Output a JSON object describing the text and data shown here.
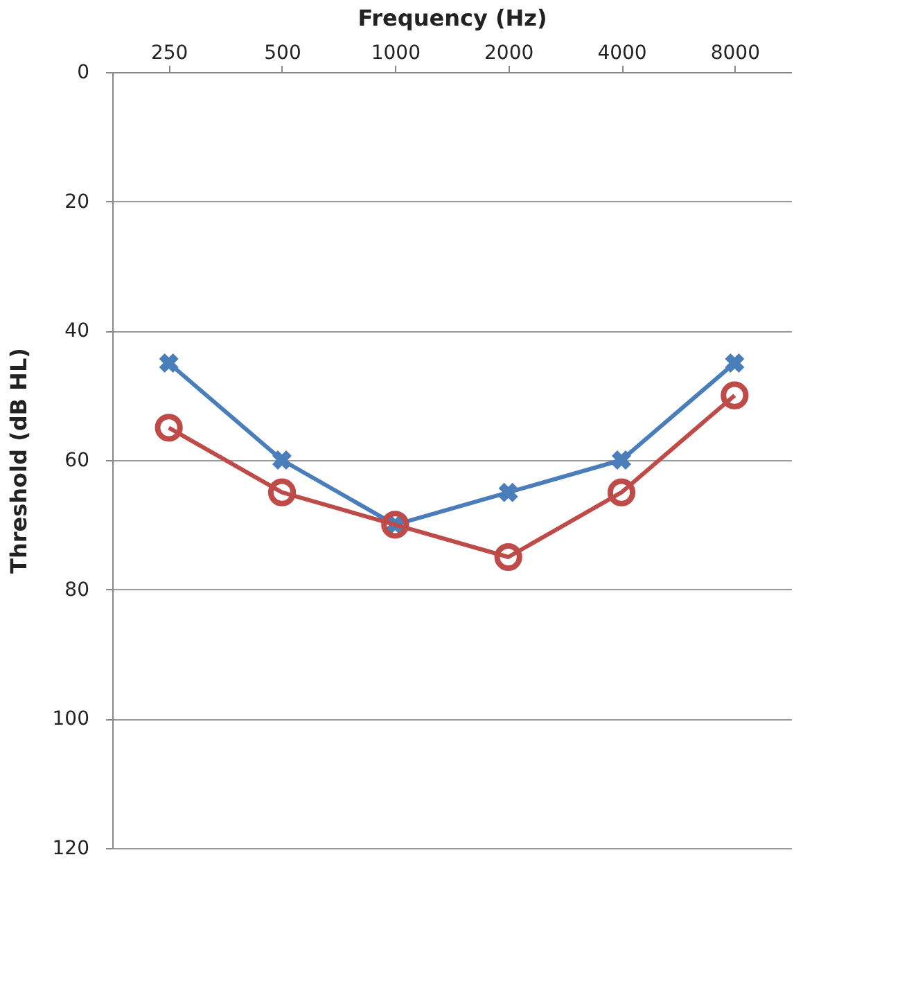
{
  "chart_data": {
    "type": "line",
    "xlabel": "Frequency (Hz)",
    "ylabel": "Threshold (dB HL)",
    "categories": [
      "250",
      "500",
      "1000",
      "2000",
      "4000",
      "8000"
    ],
    "series": [
      {
        "color": "#4a7ebb",
        "marker": "cross",
        "values": [
          45,
          60,
          70,
          65,
          60,
          45
        ]
      },
      {
        "color": "#be4b48",
        "marker": "circle",
        "values": [
          55,
          65,
          70,
          75,
          65,
          50
        ]
      }
    ],
    "ylim": [
      120,
      0
    ],
    "yticks": [
      0,
      20,
      40,
      60,
      80,
      100,
      120
    ],
    "grid": "y",
    "line_style": "solid"
  }
}
